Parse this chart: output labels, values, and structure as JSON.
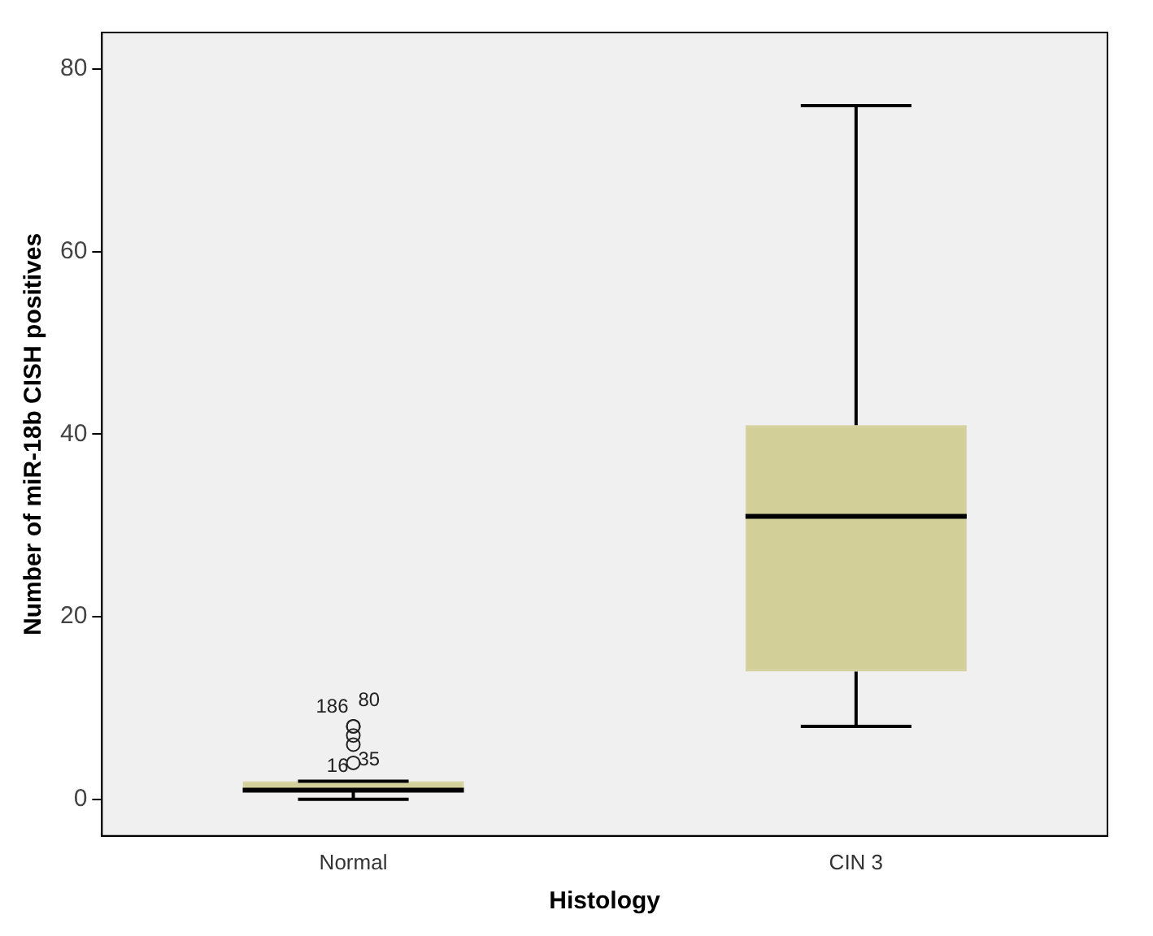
{
  "chart_data": {
    "type": "box",
    "xlabel": "Histology",
    "ylabel": "Number of miR-18b CISH positives",
    "categories": [
      "Normal",
      "CIN 3"
    ],
    "boxes": [
      {
        "low": 0,
        "q1": 1,
        "median": 1,
        "q3": 2,
        "high": 2,
        "outliers": [
          4,
          6,
          7,
          8,
          8
        ]
      },
      {
        "low": 8,
        "q1": 14,
        "median": 31,
        "q3": 41,
        "high": 76
      }
    ],
    "color": "#d3cf99",
    "ylim": [
      -4,
      84
    ],
    "yticks": [
      0,
      20,
      40,
      60,
      80
    ],
    "grid": false,
    "annotations": [
      "186",
      "80",
      "16",
      "35"
    ]
  }
}
